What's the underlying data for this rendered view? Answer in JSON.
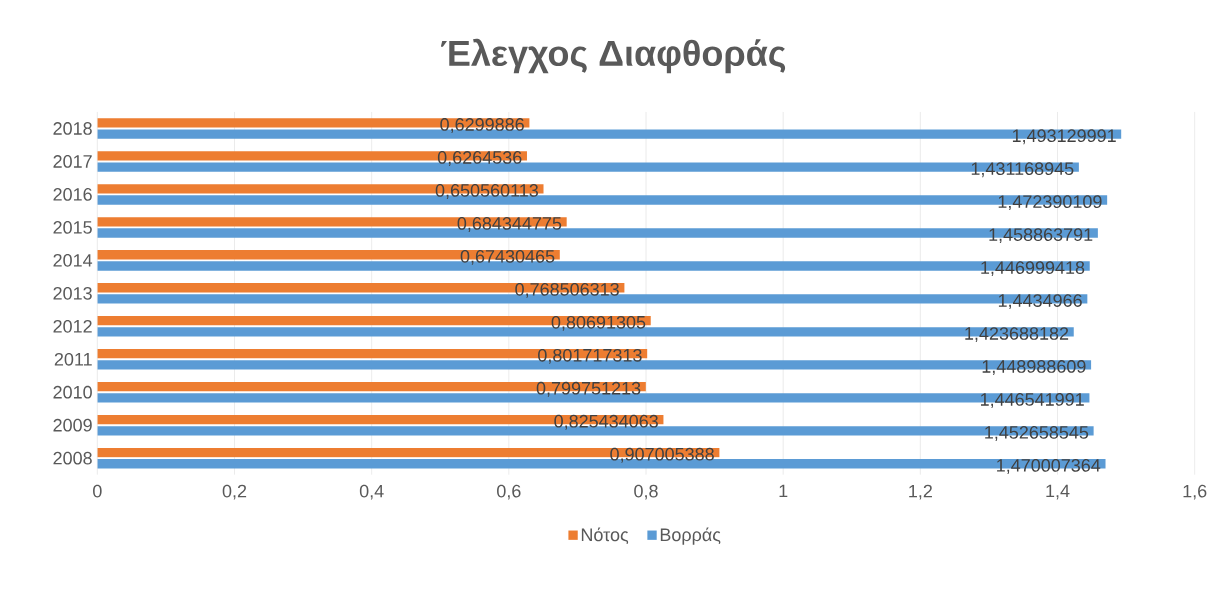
{
  "chart_data": {
    "type": "bar",
    "orientation": "horizontal",
    "title": "Έλεγχος Διαφθοράς",
    "categories": [
      "2018",
      "2017",
      "2016",
      "2015",
      "2014",
      "2013",
      "2012",
      "2011",
      "2010",
      "2009",
      "2008"
    ],
    "series": [
      {
        "name": "Νότος",
        "color": "#ed7d31",
        "values": [
          0.6299886,
          0.6264536,
          0.650560113,
          0.684344775,
          0.67430465,
          0.768506313,
          0.80691305,
          0.801717313,
          0.799751213,
          0.825434063,
          0.907005388
        ],
        "value_labels": [
          "0,6299886",
          "0,6264536",
          "0,650560113",
          "0,684344775",
          "0,67430465",
          "0,768506313",
          "0,80691305",
          "0,801717313",
          "0,799751213",
          "0,825434063",
          "0,907005388"
        ]
      },
      {
        "name": "Βορράς",
        "color": "#5b9bd5",
        "values": [
          1.493129991,
          1.431168945,
          1.472390109,
          1.458863791,
          1.446999418,
          1.4434966,
          1.423688182,
          1.448988609,
          1.446541991,
          1.452658545,
          1.470007364
        ],
        "value_labels": [
          "1,493129991",
          "1,431168945",
          "1,472390109",
          "1,458863791",
          "1,446999418",
          "1,4434966",
          "1,423688182",
          "1,448988609",
          "1,446541991",
          "1,452658545",
          "1,470007364"
        ]
      }
    ],
    "xlim": [
      0,
      1.6
    ],
    "xticks": [
      0,
      {
        "value": 0.2,
        "label": "0,2"
      },
      {
        "value": 0.4,
        "label": "0,4"
      },
      {
        "value": 0.6,
        "label": "0,6"
      },
      {
        "value": 0.8,
        "label": "0,8"
      },
      1,
      {
        "value": 1.2,
        "label": "1,2"
      },
      {
        "value": 1.4,
        "label": "1,4"
      },
      {
        "value": 1.6,
        "label": "1,6"
      }
    ],
    "grid": "x",
    "legend": "bottom"
  }
}
